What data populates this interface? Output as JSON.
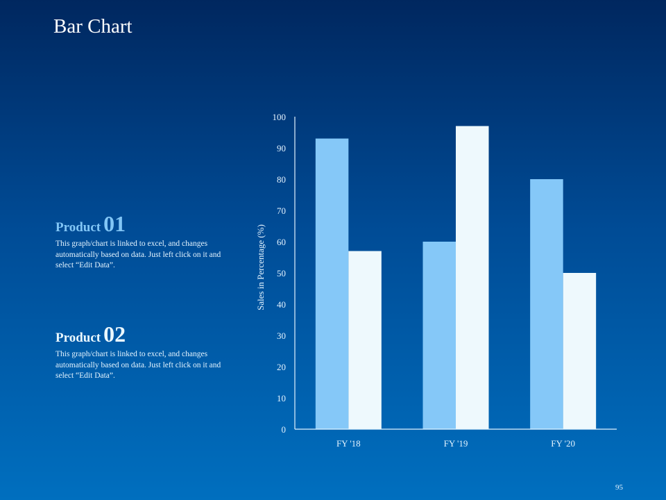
{
  "title": "Bar Chart",
  "products": [
    {
      "label": "Product",
      "number": "01",
      "text": "This graph/chart  is linked to excel, and changes  automatically  based  on data.  Just left click on it and  select “Edit Data”."
    },
    {
      "label": "Product",
      "number": "02",
      "text": "This graph/chart  is linked to excel, and changes  automatically  based  on data.  Just left click on it and  select “Edit Data”."
    }
  ],
  "page_number": "95",
  "chart_data": {
    "type": "bar",
    "title": "",
    "categories": [
      "FY '18",
      "FY '19",
      "FY '20"
    ],
    "series": [
      {
        "name": "Product 01",
        "values": [
          93,
          60,
          80
        ],
        "color": "#85c8f8"
      },
      {
        "name": "Product 02",
        "values": [
          57,
          97,
          50
        ],
        "color": "#eef9fd"
      }
    ],
    "xlabel": "",
    "ylabel": "Sales in Percentage (%)",
    "ylim": [
      0,
      100
    ],
    "yticks": [
      0,
      10,
      20,
      30,
      40,
      50,
      60,
      70,
      80,
      90,
      100
    ],
    "grid": false,
    "legend": "none"
  }
}
